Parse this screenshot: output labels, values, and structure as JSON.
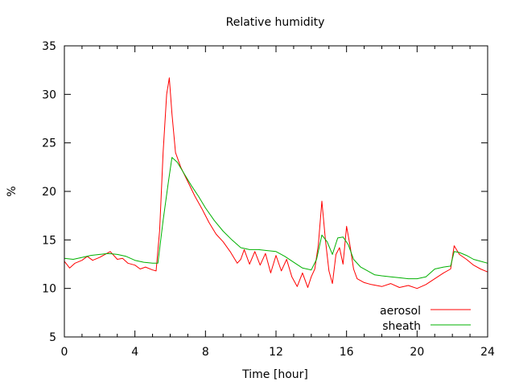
{
  "chart_data": {
    "type": "line",
    "title": "Relative humidity",
    "xlabel": "Time [hour]",
    "ylabel": "%",
    "xlim": [
      0,
      24
    ],
    "ylim": [
      5,
      35
    ],
    "xticks": [
      0,
      4,
      8,
      12,
      16,
      20,
      24
    ],
    "yticks": [
      5,
      10,
      15,
      20,
      25,
      30,
      35
    ],
    "grid": false,
    "legend_position": "bottom-right",
    "series": [
      {
        "name": "aerosol",
        "color": "#ff0000",
        "points": [
          [
            0.0,
            12.8
          ],
          [
            0.3,
            12.1
          ],
          [
            0.6,
            12.6
          ],
          [
            1.0,
            12.9
          ],
          [
            1.3,
            13.3
          ],
          [
            1.6,
            12.9
          ],
          [
            2.0,
            13.2
          ],
          [
            2.3,
            13.5
          ],
          [
            2.6,
            13.8
          ],
          [
            3.0,
            13.0
          ],
          [
            3.3,
            13.1
          ],
          [
            3.6,
            12.6
          ],
          [
            4.0,
            12.4
          ],
          [
            4.3,
            12.0
          ],
          [
            4.6,
            12.2
          ],
          [
            5.0,
            11.9
          ],
          [
            5.2,
            11.8
          ],
          [
            5.4,
            16.0
          ],
          [
            5.6,
            24.0
          ],
          [
            5.8,
            30.0
          ],
          [
            5.95,
            31.7
          ],
          [
            6.1,
            28.0
          ],
          [
            6.3,
            24.0
          ],
          [
            6.6,
            22.5
          ],
          [
            7.0,
            21.0
          ],
          [
            7.4,
            19.5
          ],
          [
            7.8,
            18.2
          ],
          [
            8.2,
            16.8
          ],
          [
            8.6,
            15.6
          ],
          [
            9.0,
            14.8
          ],
          [
            9.4,
            13.8
          ],
          [
            9.8,
            12.6
          ],
          [
            10.0,
            13.0
          ],
          [
            10.2,
            14.0
          ],
          [
            10.5,
            12.5
          ],
          [
            10.8,
            13.8
          ],
          [
            11.1,
            12.4
          ],
          [
            11.4,
            13.6
          ],
          [
            11.7,
            11.6
          ],
          [
            12.0,
            13.4
          ],
          [
            12.3,
            11.8
          ],
          [
            12.6,
            13.0
          ],
          [
            12.9,
            11.2
          ],
          [
            13.2,
            10.2
          ],
          [
            13.5,
            11.6
          ],
          [
            13.8,
            10.1
          ],
          [
            14.0,
            11.2
          ],
          [
            14.2,
            12.0
          ],
          [
            14.4,
            14.5
          ],
          [
            14.6,
            19.0
          ],
          [
            14.8,
            15.0
          ],
          [
            15.0,
            11.8
          ],
          [
            15.2,
            10.5
          ],
          [
            15.4,
            13.5
          ],
          [
            15.6,
            14.2
          ],
          [
            15.8,
            12.5
          ],
          [
            16.0,
            16.4
          ],
          [
            16.2,
            14.4
          ],
          [
            16.4,
            12.0
          ],
          [
            16.6,
            11.0
          ],
          [
            17.0,
            10.6
          ],
          [
            17.4,
            10.4
          ],
          [
            18.0,
            10.2
          ],
          [
            18.5,
            10.5
          ],
          [
            19.0,
            10.1
          ],
          [
            19.5,
            10.3
          ],
          [
            20.0,
            10.0
          ],
          [
            20.5,
            10.4
          ],
          [
            21.0,
            11.0
          ],
          [
            21.5,
            11.6
          ],
          [
            21.9,
            12.0
          ],
          [
            22.1,
            14.4
          ],
          [
            22.4,
            13.5
          ],
          [
            22.8,
            13.0
          ],
          [
            23.2,
            12.4
          ],
          [
            23.6,
            12.0
          ],
          [
            24.0,
            11.7
          ]
        ]
      },
      {
        "name": "sheath",
        "color": "#00b000",
        "points": [
          [
            0.0,
            13.1
          ],
          [
            0.5,
            13.0
          ],
          [
            1.0,
            13.2
          ],
          [
            1.5,
            13.4
          ],
          [
            2.0,
            13.5
          ],
          [
            2.5,
            13.6
          ],
          [
            3.0,
            13.5
          ],
          [
            3.5,
            13.3
          ],
          [
            4.0,
            12.9
          ],
          [
            4.5,
            12.7
          ],
          [
            5.0,
            12.6
          ],
          [
            5.3,
            12.6
          ],
          [
            5.6,
            17.0
          ],
          [
            5.9,
            21.0
          ],
          [
            6.1,
            23.5
          ],
          [
            6.4,
            23.0
          ],
          [
            6.8,
            21.8
          ],
          [
            7.2,
            20.6
          ],
          [
            7.6,
            19.5
          ],
          [
            8.0,
            18.3
          ],
          [
            8.5,
            17.0
          ],
          [
            9.0,
            15.9
          ],
          [
            9.5,
            15.0
          ],
          [
            10.0,
            14.2
          ],
          [
            10.5,
            14.0
          ],
          [
            11.0,
            14.0
          ],
          [
            11.5,
            13.9
          ],
          [
            12.0,
            13.8
          ],
          [
            12.5,
            13.3
          ],
          [
            13.0,
            12.7
          ],
          [
            13.5,
            12.1
          ],
          [
            14.0,
            11.9
          ],
          [
            14.3,
            13.0
          ],
          [
            14.6,
            15.5
          ],
          [
            14.9,
            14.8
          ],
          [
            15.2,
            13.5
          ],
          [
            15.5,
            15.2
          ],
          [
            15.8,
            15.3
          ],
          [
            16.1,
            14.5
          ],
          [
            16.4,
            13.0
          ],
          [
            16.8,
            12.2
          ],
          [
            17.2,
            11.8
          ],
          [
            17.6,
            11.4
          ],
          [
            18.0,
            11.3
          ],
          [
            18.5,
            11.2
          ],
          [
            19.0,
            11.1
          ],
          [
            19.5,
            11.0
          ],
          [
            20.0,
            11.0
          ],
          [
            20.5,
            11.2
          ],
          [
            21.0,
            12.0
          ],
          [
            21.5,
            12.2
          ],
          [
            21.9,
            12.3
          ],
          [
            22.1,
            13.8
          ],
          [
            22.4,
            13.7
          ],
          [
            22.8,
            13.4
          ],
          [
            23.2,
            13.0
          ],
          [
            23.6,
            12.8
          ],
          [
            24.0,
            12.6
          ]
        ]
      }
    ]
  }
}
